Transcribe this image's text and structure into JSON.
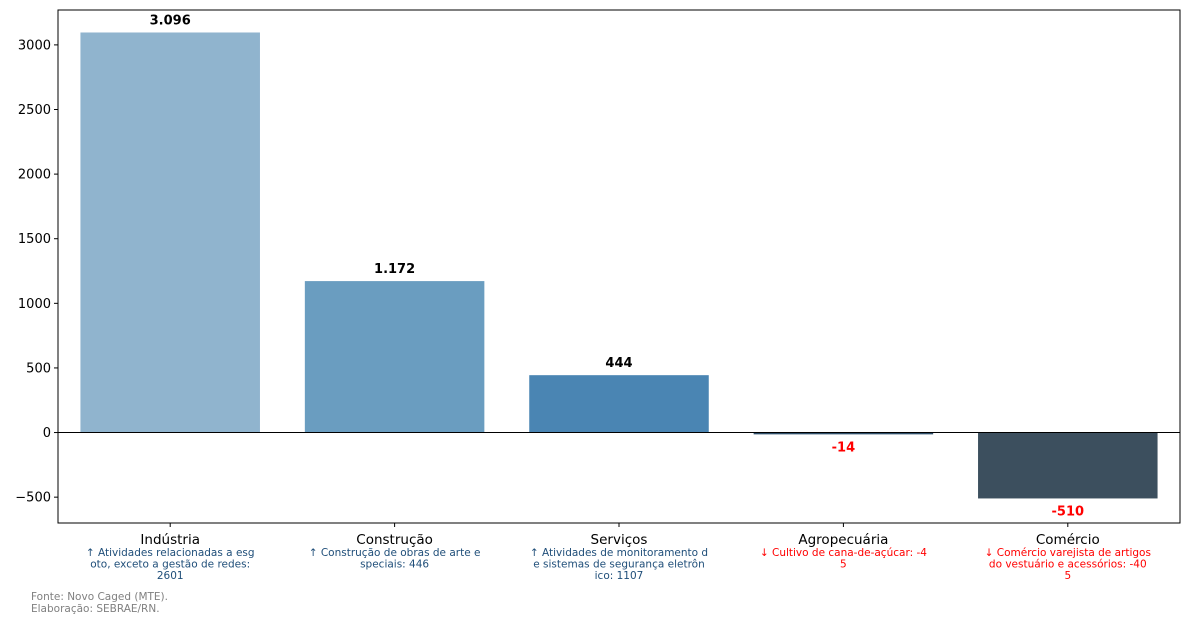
{
  "chart_data": {
    "type": "bar",
    "categories": [
      "Indústria",
      "Construção",
      "Serviços",
      "Agropecuária",
      "Comércio"
    ],
    "values": [
      3096,
      1172,
      444,
      -14,
      -510
    ],
    "value_labels": [
      "3.096",
      "1.172",
      "444",
      "-14",
      "-510"
    ],
    "bar_colors": [
      "#90b4ce",
      "#6a9dc0",
      "#4a85b3",
      "#2f4f6a",
      "#3c4f5e"
    ],
    "positive_label_color": "#000000",
    "negative_label_color": "#ff0000",
    "ylim": [
      -700,
      3270
    ],
    "yticks": [
      -500,
      0,
      500,
      1000,
      1500,
      2000,
      2500,
      3000
    ],
    "ytick_labels": [
      "−500",
      "0",
      "500",
      "1000",
      "1500",
      "2000",
      "2500",
      "3000"
    ],
    "grid": false,
    "annotations": [
      {
        "lines": [
          "↑ Atividades relacionadas a esg",
          "oto, exceto a gestão de redes:",
          "2601"
        ],
        "color": "#1f4e79"
      },
      {
        "lines": [
          "↑ Construção de obras de arte e",
          "speciais: 446"
        ],
        "color": "#1f4e79"
      },
      {
        "lines": [
          "↑ Atividades de monitoramento d",
          "e sistemas de segurança eletrôn",
          "ico: 1107"
        ],
        "color": "#1f4e79"
      },
      {
        "lines": [
          "↓ Cultivo de cana-de-açúcar: -4",
          "5"
        ],
        "color": "#ff0000"
      },
      {
        "lines": [
          "↓ Comércio varejista de artigos",
          " do vestuário e acessórios: -40",
          "5"
        ],
        "color": "#ff0000"
      }
    ]
  },
  "footer": {
    "source": "Fonte: Novo Caged (MTE).",
    "credit": "Elaboração: SEBRAE/RN."
  }
}
